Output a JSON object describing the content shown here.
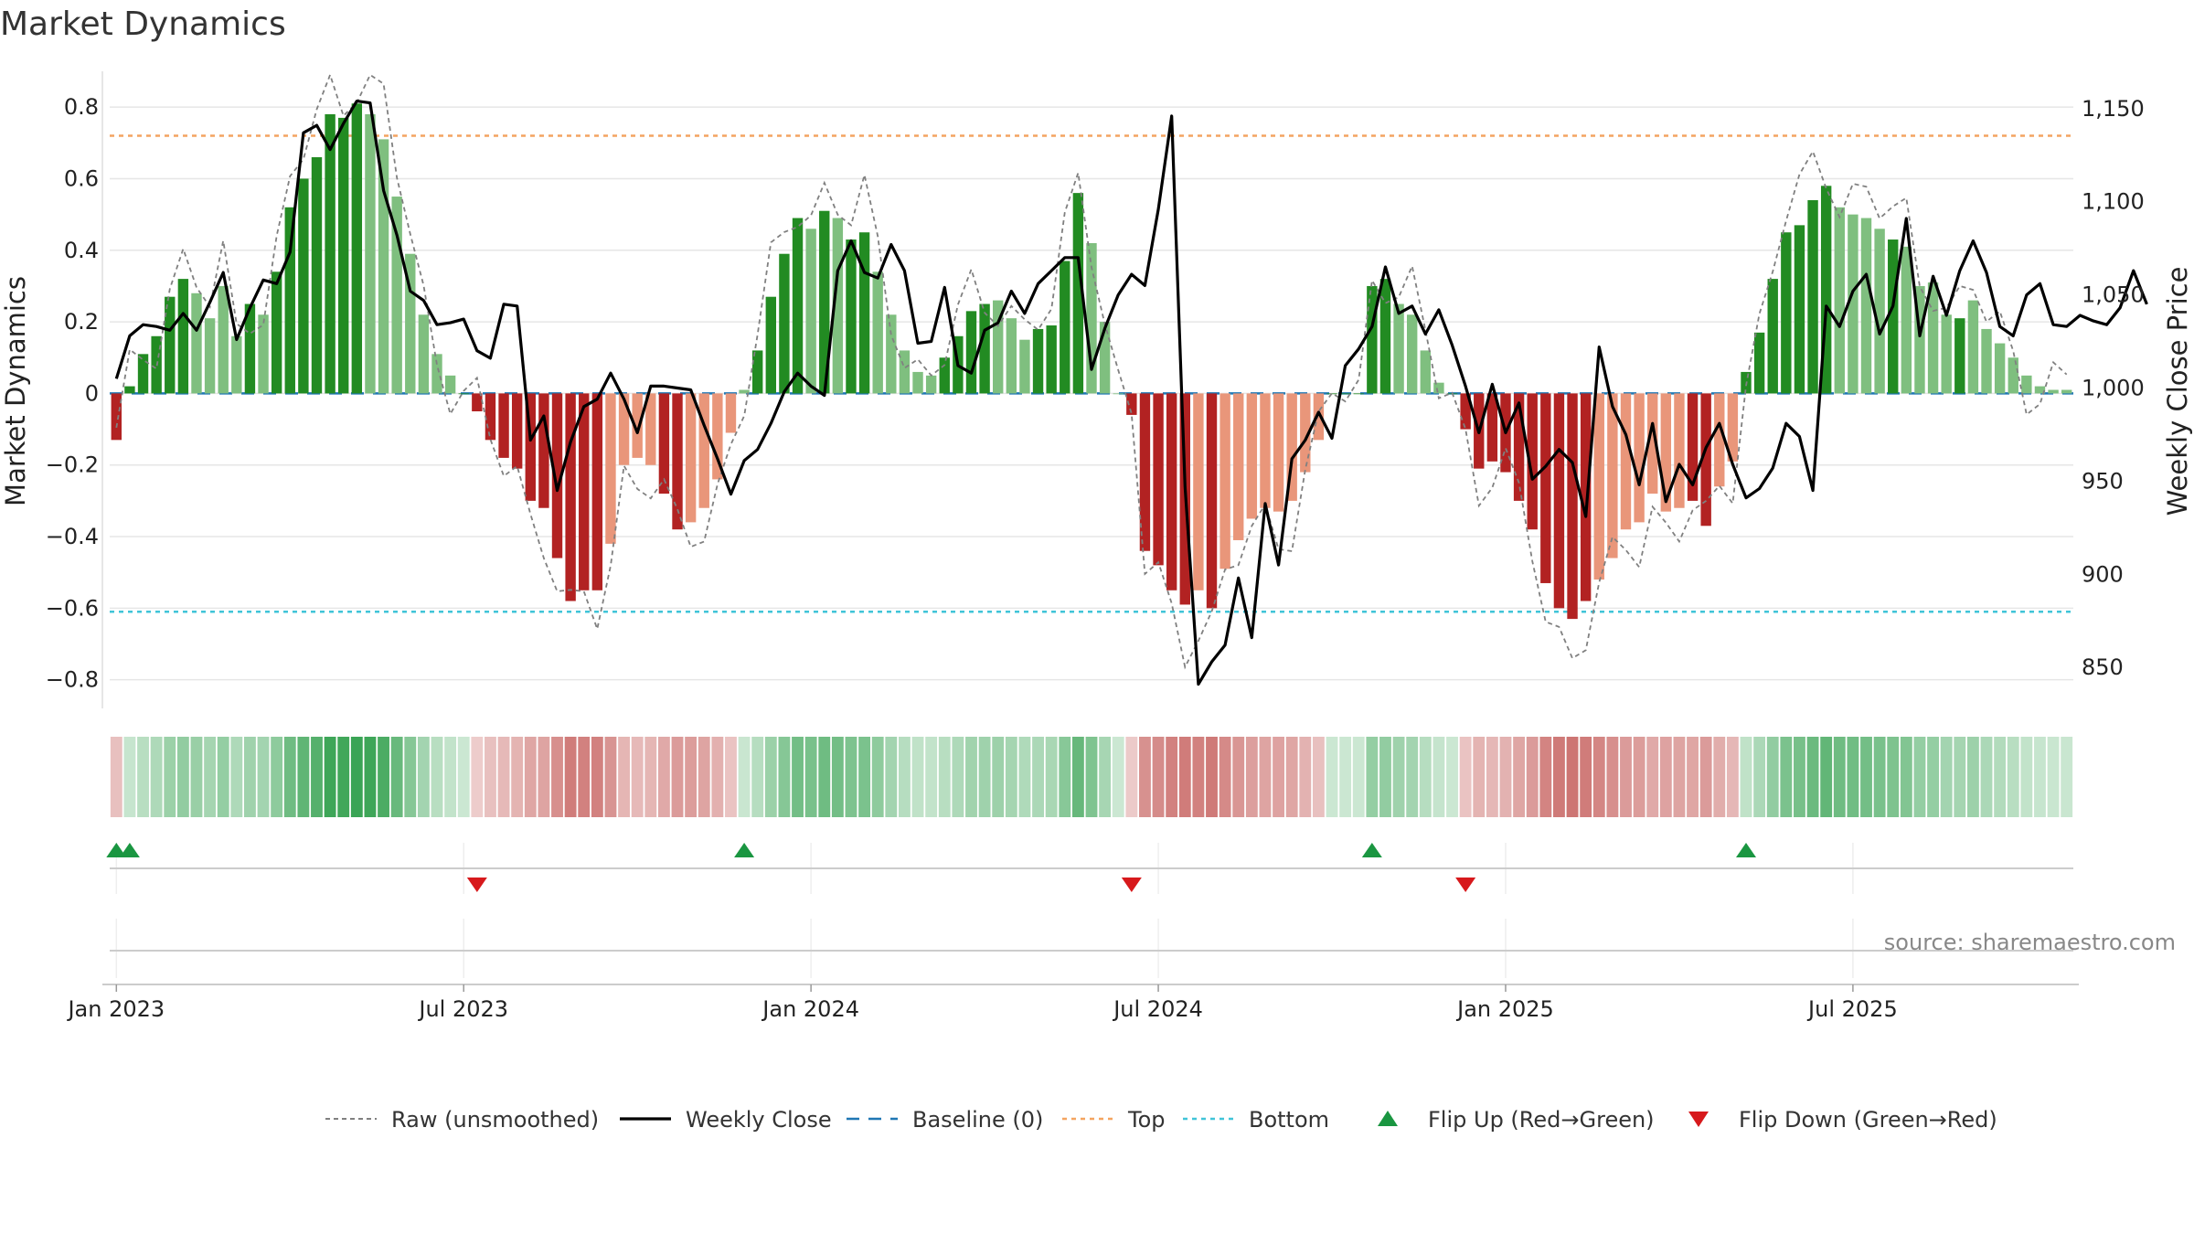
{
  "chart_data": {
    "type": "bar",
    "title": "Market Dynamics",
    "ylabel_left": "Market Dynamics",
    "ylabel_right": "Weekly Close Price",
    "ylim_left": [
      -0.88,
      0.9
    ],
    "ylim_right": [
      828,
      1170
    ],
    "left_ticks": [
      {
        "value": 0.8,
        "label": "0.8"
      },
      {
        "value": 0.6,
        "label": "0.6"
      },
      {
        "value": 0.4,
        "label": "0.4"
      },
      {
        "value": 0.2,
        "label": "0.2"
      },
      {
        "value": 0,
        "label": "0"
      },
      {
        "value": -0.2,
        "label": "−0.2"
      },
      {
        "value": -0.4,
        "label": "−0.4"
      },
      {
        "value": -0.6,
        "label": "−0.6"
      },
      {
        "value": -0.8,
        "label": "−0.8"
      }
    ],
    "right_ticks": [
      {
        "value": 1150,
        "label": "1,150"
      },
      {
        "value": 1100,
        "label": "1,100"
      },
      {
        "value": 1050,
        "label": "1,050"
      },
      {
        "value": 1000,
        "label": "1,000"
      },
      {
        "value": 950,
        "label": "950"
      },
      {
        "value": 900,
        "label": "900"
      },
      {
        "value": 850,
        "label": "850"
      }
    ],
    "x_ticks": [
      {
        "week": 1,
        "label": "Jan 2023"
      },
      {
        "week": 27,
        "label": "Jul 2023"
      },
      {
        "week": 53,
        "label": "Jan 2024"
      },
      {
        "week": 79,
        "label": "Jul 2024"
      },
      {
        "week": 105,
        "label": "Jan 2025"
      },
      {
        "week": 131,
        "label": "Jul 2025"
      }
    ],
    "levels": {
      "top": 0.72,
      "bottom": -0.61,
      "baseline": 0
    },
    "colors": {
      "strong_green": "#228b22",
      "light_green": "#7fbf7f",
      "strong_red": "#b22222",
      "light_red": "#e9967a",
      "top": "#f4a460",
      "bottom": "#40c4d8",
      "baseline": "#1f77b4",
      "raw": "#808080",
      "close": "#000000",
      "flip_up": "#1a9641",
      "flip_down": "#d7191c",
      "regime_green": "#2e9e4a",
      "regime_red": "#c0504d"
    },
    "dynamics": [
      -0.13,
      0.02,
      0.11,
      0.16,
      0.27,
      0.32,
      0.28,
      0.21,
      0.3,
      0.16,
      0.25,
      0.22,
      0.34,
      0.52,
      0.6,
      0.66,
      0.78,
      0.77,
      0.81,
      0.78,
      0.71,
      0.55,
      0.39,
      0.22,
      0.11,
      0.05,
      0,
      -0.05,
      -0.13,
      -0.18,
      -0.21,
      -0.3,
      -0.32,
      -0.46,
      -0.58,
      -0.55,
      -0.55,
      -0.42,
      -0.2,
      -0.18,
      -0.2,
      -0.28,
      -0.38,
      -0.36,
      -0.32,
      -0.24,
      -0.11,
      0.01,
      0.12,
      0.27,
      0.39,
      0.49,
      0.46,
      0.51,
      0.49,
      0.43,
      0.45,
      0.34,
      0.22,
      0.12,
      0.06,
      0.05,
      0.1,
      0.16,
      0.23,
      0.25,
      0.26,
      0.21,
      0.15,
      0.18,
      0.19,
      0.37,
      0.56,
      0.42,
      0.2,
      0,
      -0.06,
      -0.44,
      -0.48,
      -0.55,
      -0.59,
      -0.55,
      -0.6,
      -0.49,
      -0.41,
      -0.35,
      -0.32,
      -0.33,
      -0.3,
      -0.22,
      -0.13,
      0,
      0,
      0,
      0.3,
      0.32,
      0.25,
      0.22,
      0.12,
      0.03,
      0,
      -0.1,
      -0.21,
      -0.19,
      -0.22,
      -0.3,
      -0.38,
      -0.53,
      -0.6,
      -0.63,
      -0.58,
      -0.52,
      -0.46,
      -0.38,
      -0.36,
      -0.28,
      -0.33,
      -0.32,
      -0.3,
      -0.37,
      -0.26,
      -0.19,
      0.06,
      0.17,
      0.32,
      0.45,
      0.47,
      0.54,
      0.58,
      0.52,
      0.5,
      0.49,
      0.46,
      0.43,
      0.41,
      0.3,
      0.31,
      0.22,
      0.21,
      0.26,
      0.18,
      0.14,
      0.1,
      0.05,
      0.02,
      0.01,
      0.01
    ],
    "dynamics_strength": [
      "s",
      "s",
      "s",
      "s",
      "s",
      "s",
      "l",
      "l",
      "l",
      "l",
      "s",
      "l",
      "s",
      "s",
      "s",
      "s",
      "s",
      "s",
      "s",
      "l",
      "l",
      "l",
      "l",
      "l",
      "l",
      "l",
      "s",
      "s",
      "s",
      "s",
      "s",
      "s",
      "s",
      "s",
      "s",
      "s",
      "s",
      "l",
      "l",
      "l",
      "l",
      "s",
      "s",
      "l",
      "l",
      "l",
      "l",
      "l",
      "s",
      "s",
      "s",
      "s",
      "l",
      "s",
      "l",
      "s",
      "s",
      "l",
      "l",
      "l",
      "l",
      "l",
      "s",
      "s",
      "s",
      "s",
      "l",
      "l",
      "l",
      "s",
      "s",
      "s",
      "s",
      "l",
      "l",
      "l",
      "s",
      "s",
      "s",
      "s",
      "s",
      "l",
      "s",
      "l",
      "l",
      "l",
      "l",
      "l",
      "l",
      "l",
      "l",
      "s",
      "s",
      "s",
      "s",
      "s",
      "l",
      "l",
      "l",
      "l",
      "s",
      "s",
      "s",
      "s",
      "s",
      "s",
      "s",
      "s",
      "s",
      "s",
      "s",
      "l",
      "l",
      "l",
      "l",
      "l",
      "l",
      "l",
      "s",
      "s",
      "l",
      "l",
      "s",
      "s",
      "s",
      "s",
      "s",
      "s",
      "s",
      "l",
      "l",
      "l",
      "l",
      "s",
      "l",
      "l",
      "l",
      "l",
      "s",
      "l",
      "l",
      "l",
      "l",
      "l",
      "l",
      "l",
      "l",
      "l"
    ],
    "weekly_close": [
      1005,
      1028,
      1034,
      1033,
      1031,
      1040,
      1031,
      1046,
      1062,
      1026,
      1043,
      1058,
      1056,
      1073,
      1137,
      1141,
      1128,
      1142,
      1154,
      1153,
      1106,
      1082,
      1052,
      1047,
      1034,
      1035,
      1037,
      1020,
      1016,
      1045,
      1044,
      972,
      985,
      945,
      971,
      990,
      994,
      1008,
      994,
      976,
      1001,
      1001,
      1000,
      999,
      980,
      962,
      943,
      961,
      967,
      981,
      998,
      1008,
      1001,
      996,
      1063,
      1079,
      1062,
      1059,
      1077,
      1063,
      1024,
      1025,
      1054,
      1012,
      1008,
      1031,
      1035,
      1052,
      1040,
      1056,
      1063,
      1070,
      1070,
      1010,
      1032,
      1050,
      1061,
      1055,
      1096,
      1146,
      947,
      841,
      853,
      862,
      898,
      866,
      938,
      905,
      962,
      972,
      987,
      973,
      1012,
      1021,
      1033,
      1065,
      1040,
      1044,
      1029,
      1042,
      1023,
      1001,
      976,
      1002,
      976,
      992,
      951,
      958,
      967,
      960,
      931,
      1022,
      990,
      975,
      948,
      981,
      939,
      959,
      948,
      968,
      981,
      959,
      941,
      946,
      957,
      981,
      974,
      945,
      1044,
      1033,
      1052,
      1061,
      1029,
      1044,
      1091,
      1028,
      1060,
      1039,
      1063,
      1079,
      1062,
      1033,
      1028,
      1050,
      1056,
      1034,
      1033,
      1039,
      1036,
      1034,
      1043,
      1063,
      1045
    ]
  },
  "legend": [
    {
      "key": "raw",
      "label": "Raw (unsmoothed)"
    },
    {
      "key": "close",
      "label": "Weekly Close"
    },
    {
      "key": "baseline",
      "label": "Baseline (0)"
    },
    {
      "key": "top",
      "label": "Top"
    },
    {
      "key": "bottom",
      "label": "Bottom"
    },
    {
      "key": "flip_up",
      "label": "Flip Up (Red→Green)"
    },
    {
      "key": "flip_down",
      "label": "Flip Down (Green→Red)"
    }
  ],
  "source": "source: sharemaestro.com"
}
